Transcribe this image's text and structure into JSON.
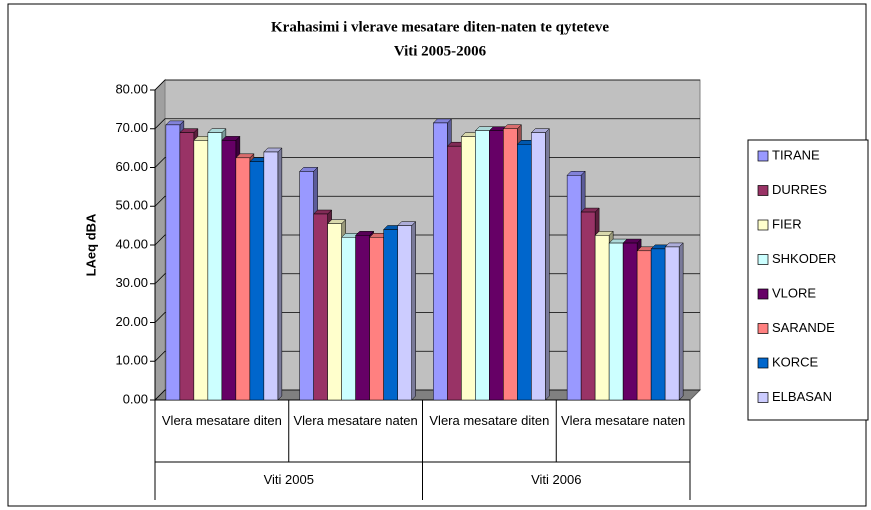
{
  "chart_data": {
    "type": "bar",
    "title": "Krahasimi i vlerave mesatare diten-naten te qyteteve",
    "subtitle": "Viti 2005-2006",
    "y_label": "LAeq dBA",
    "categories": [
      "Vlera mesatare diten",
      "Vlera mesatare naten",
      "Vlera mesatare diten",
      "Vlera mesatare naten"
    ],
    "groups": [
      "Viti 2005",
      "Viti 2006"
    ],
    "series": [
      {
        "name": "TIRANE",
        "color": "#9999ff",
        "values": [
          71,
          59,
          71.5,
          58
        ]
      },
      {
        "name": "DURRES",
        "color": "#993366",
        "values": [
          69,
          48,
          65.5,
          48.5
        ]
      },
      {
        "name": "FIER",
        "color": "#ffffcc",
        "values": [
          67,
          45.5,
          68,
          42.5
        ]
      },
      {
        "name": "SHKODER",
        "color": "#ccffff",
        "values": [
          69,
          42,
          69.5,
          40.5
        ]
      },
      {
        "name": "VLORE",
        "color": "#660066",
        "values": [
          67,
          42.5,
          69.5,
          40.5
        ]
      },
      {
        "name": "SARANDE",
        "color": "#ff8080",
        "values": [
          62.5,
          42,
          70,
          38.5
        ]
      },
      {
        "name": "KORCE",
        "color": "#0066cc",
        "values": [
          61.5,
          44,
          66,
          39
        ]
      },
      {
        "name": "ELBASAN",
        "color": "#ccccff",
        "values": [
          64,
          45,
          69,
          39.5
        ]
      }
    ],
    "ylim": [
      0,
      80
    ],
    "yticks": [
      {
        "value": 0,
        "label": "0.00"
      },
      {
        "value": 10,
        "label": "10.00"
      },
      {
        "value": 20,
        "label": "20.00"
      },
      {
        "value": 30,
        "label": "30.00"
      },
      {
        "value": 40,
        "label": "40.00"
      },
      {
        "value": 50,
        "label": "50.00"
      },
      {
        "value": 60,
        "label": "60.00"
      },
      {
        "value": 70,
        "label": "70.00"
      },
      {
        "value": 80,
        "label": "80.00"
      }
    ],
    "grid": true,
    "legend": "right"
  }
}
